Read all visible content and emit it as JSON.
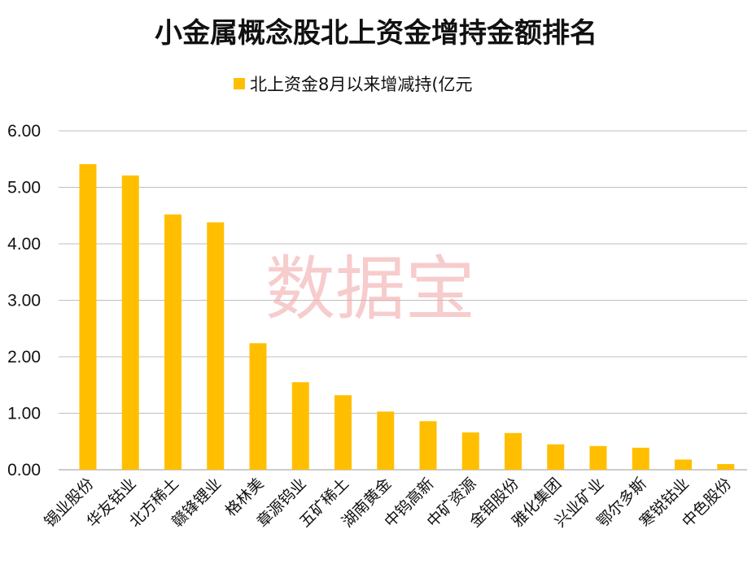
{
  "watermark": "数据宝",
  "colors": {
    "bar": "#FFBF00",
    "grid": "#BFBFBF",
    "axis": "#999999"
  },
  "chart_data": {
    "type": "bar",
    "title": "小金属概念股北上资金增持金额排名",
    "legend_position": "top",
    "grid": true,
    "ylim": [
      0,
      6
    ],
    "yticks": [
      "0.00",
      "1.00",
      "2.00",
      "3.00",
      "4.00",
      "5.00",
      "6.00"
    ],
    "categories": [
      "锡业股份",
      "华友钴业",
      "北方稀土",
      "赣锋锂业",
      "格林美",
      "章源钨业",
      "五矿稀土",
      "湖南黄金",
      "中钨高新",
      "中矿资源",
      "金钼股份",
      "雅化集团",
      "兴业矿业",
      "鄂尔多斯",
      "寒锐钴业",
      "中色股份"
    ],
    "series": [
      {
        "name": "北上资金8月以来增减持(亿元",
        "values": [
          5.41,
          5.21,
          4.52,
          4.38,
          2.24,
          1.55,
          1.32,
          1.03,
          0.86,
          0.66,
          0.65,
          0.45,
          0.42,
          0.39,
          0.18,
          0.1
        ]
      }
    ]
  }
}
